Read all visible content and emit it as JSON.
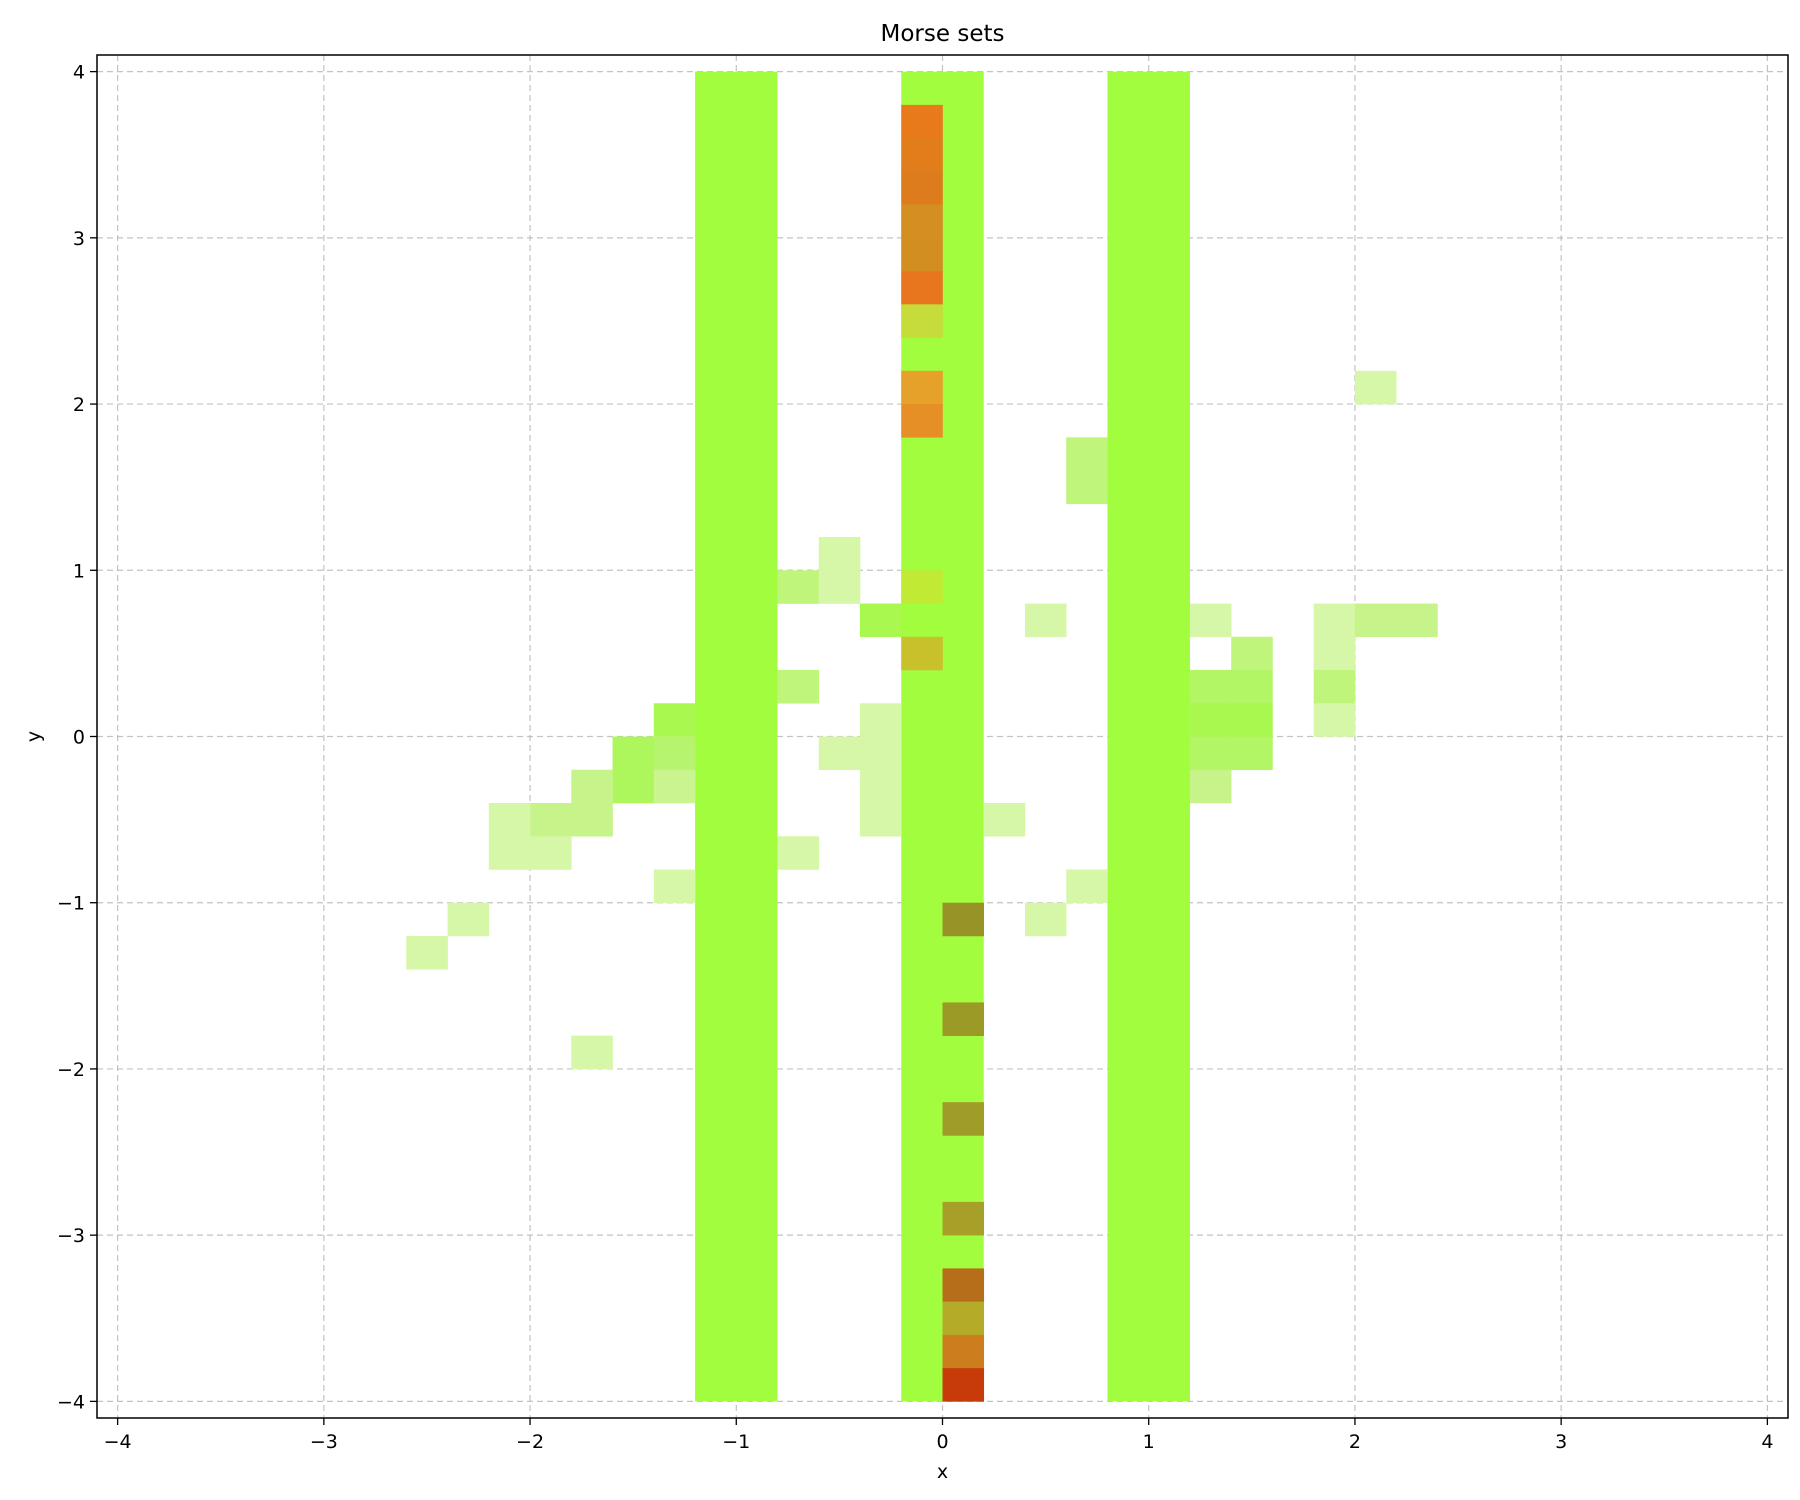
{
  "chart_data": {
    "type": "heatmap",
    "title": "Morse sets",
    "xlabel": "x",
    "ylabel": "y",
    "xlim": [
      -4.1,
      4.1
    ],
    "ylim": [
      -4.1,
      4.1
    ],
    "xticks": [
      -4,
      -3,
      -2,
      -1,
      0,
      1,
      2,
      3,
      4
    ],
    "yticks": [
      -4,
      -3,
      -2,
      -1,
      0,
      1,
      2,
      3,
      4
    ],
    "xtick_labels": [
      "−4",
      "−3",
      "−2",
      "−1",
      "0",
      "1",
      "2",
      "3",
      "4"
    ],
    "ytick_labels": [
      "−4",
      "−3",
      "−2",
      "−1",
      "0",
      "1",
      "2",
      "3",
      "4"
    ],
    "grid": true,
    "cell_size": [
      0.2,
      0.2
    ],
    "bands": [
      {
        "x0": -1.2,
        "x1": -0.8,
        "y0": -4,
        "y1": 4,
        "color": "#a2fd3f"
      },
      {
        "x0": -0.2,
        "x1": 0.2,
        "y0": -4,
        "y1": 4,
        "color": "#a2fd3f"
      },
      {
        "x0": 0.8,
        "x1": 1.2,
        "y0": -4,
        "y1": 4,
        "color": "#a2fd3f"
      }
    ],
    "cells": [
      {
        "x": -0.2,
        "y": 3.6,
        "color": "#e87a1c"
      },
      {
        "x": -0.2,
        "y": 3.4,
        "color": "#e27d1c"
      },
      {
        "x": -0.2,
        "y": 3.2,
        "color": "#dd7c1c"
      },
      {
        "x": -0.2,
        "y": 3.0,
        "color": "#d48e22"
      },
      {
        "x": -0.2,
        "y": 2.8,
        "color": "#d38e22"
      },
      {
        "x": -0.2,
        "y": 2.6,
        "color": "#e8761f"
      },
      {
        "x": -0.2,
        "y": 2.4,
        "color": "#c6dc3a"
      },
      {
        "x": -0.2,
        "y": 2.0,
        "color": "#e6a12a"
      },
      {
        "x": -0.2,
        "y": 1.8,
        "color": "#e68f26"
      },
      {
        "x": -0.2,
        "y": 0.8,
        "color": "#c1ea35"
      },
      {
        "x": -0.2,
        "y": 0.4,
        "color": "#c8c12c"
      },
      {
        "x": 0.0,
        "y": -1.2,
        "color": "#979327"
      },
      {
        "x": 0.0,
        "y": -1.8,
        "color": "#9c9a26"
      },
      {
        "x": 0.0,
        "y": -2.4,
        "color": "#9f9d27"
      },
      {
        "x": 0.0,
        "y": -3.0,
        "color": "#a69f28"
      },
      {
        "x": 0.0,
        "y": -3.4,
        "color": "#b76e1b"
      },
      {
        "x": 0.0,
        "y": -3.6,
        "color": "#b4ab28"
      },
      {
        "x": 0.0,
        "y": -3.8,
        "color": "#cc7e1e"
      },
      {
        "x": 0.0,
        "y": -4.0,
        "color": "#c63b09"
      },
      {
        "x": -0.8,
        "y": 0.8,
        "color": "#bff57b"
      },
      {
        "x": -0.6,
        "y": 1.0,
        "color": "#d6f7a7"
      },
      {
        "x": -0.6,
        "y": 0.8,
        "color": "#d6f7a7"
      },
      {
        "x": -0.4,
        "y": 0.6,
        "color": "#a8f850"
      },
      {
        "x": -0.8,
        "y": 0.2,
        "color": "#bff57b"
      },
      {
        "x": -0.4,
        "y": 0.0,
        "color": "#d6f7a7"
      },
      {
        "x": -0.6,
        "y": -0.2,
        "color": "#d6f7a7"
      },
      {
        "x": -0.4,
        "y": -0.2,
        "color": "#d6f7a7"
      },
      {
        "x": -0.4,
        "y": -0.4,
        "color": "#d6f7a7"
      },
      {
        "x": -0.4,
        "y": -0.6,
        "color": "#d6f7a7"
      },
      {
        "x": -0.8,
        "y": -0.8,
        "color": "#d6f7a7"
      },
      {
        "x": 0.2,
        "y": -0.6,
        "color": "#d6f7a7"
      },
      {
        "x": 0.4,
        "y": 0.6,
        "color": "#d6f7a7"
      },
      {
        "x": 0.6,
        "y": 1.6,
        "color": "#bff57b"
      },
      {
        "x": 0.6,
        "y": 1.4,
        "color": "#bff57b"
      },
      {
        "x": 0.6,
        "y": -1.0,
        "color": "#d6f7a7"
      },
      {
        "x": 0.4,
        "y": -1.2,
        "color": "#d6f7a7"
      },
      {
        "x": -1.4,
        "y": 0.0,
        "color": "#a8f850"
      },
      {
        "x": -1.4,
        "y": -0.2,
        "color": "#b6f36e"
      },
      {
        "x": -1.6,
        "y": -0.2,
        "color": "#adf65c"
      },
      {
        "x": -1.6,
        "y": -0.4,
        "color": "#adf65c"
      },
      {
        "x": -1.4,
        "y": -0.4,
        "color": "#c9f48f"
      },
      {
        "x": -1.8,
        "y": -0.4,
        "color": "#c6f38a"
      },
      {
        "x": -1.8,
        "y": -0.6,
        "color": "#c6f38a"
      },
      {
        "x": -2.0,
        "y": -0.6,
        "color": "#c6f38a"
      },
      {
        "x": -2.2,
        "y": -0.6,
        "color": "#d6f7a7"
      },
      {
        "x": -2.2,
        "y": -0.8,
        "color": "#d6f7a7"
      },
      {
        "x": -2.0,
        "y": -0.8,
        "color": "#d6f7a7"
      },
      {
        "x": -1.4,
        "y": -1.0,
        "color": "#d6f7a7"
      },
      {
        "x": -2.4,
        "y": -1.2,
        "color": "#d6f7a7"
      },
      {
        "x": -2.6,
        "y": -1.4,
        "color": "#d6f7a7"
      },
      {
        "x": -1.8,
        "y": -2.0,
        "color": "#d6f7a7"
      },
      {
        "x": 1.2,
        "y": 0.6,
        "color": "#d6f7a7"
      },
      {
        "x": 1.4,
        "y": 0.4,
        "color": "#bff57b"
      },
      {
        "x": 1.2,
        "y": 0.2,
        "color": "#b2f565"
      },
      {
        "x": 1.4,
        "y": 0.2,
        "color": "#b2f565"
      },
      {
        "x": 1.2,
        "y": 0.0,
        "color": "#a8f850"
      },
      {
        "x": 1.4,
        "y": 0.0,
        "color": "#a8f850"
      },
      {
        "x": 1.2,
        "y": -0.2,
        "color": "#b2f565"
      },
      {
        "x": 1.4,
        "y": -0.2,
        "color": "#b2f565"
      },
      {
        "x": 1.2,
        "y": -0.4,
        "color": "#c6f38a"
      },
      {
        "x": 1.8,
        "y": 0.6,
        "color": "#d6f7a7"
      },
      {
        "x": 2.0,
        "y": 0.6,
        "color": "#c6f38a"
      },
      {
        "x": 2.2,
        "y": 0.6,
        "color": "#c6f38a"
      },
      {
        "x": 1.8,
        "y": 0.4,
        "color": "#d6f7a7"
      },
      {
        "x": 1.8,
        "y": 0.2,
        "color": "#bff57b"
      },
      {
        "x": 1.8,
        "y": 0.0,
        "color": "#d6f7a7"
      },
      {
        "x": 2.0,
        "y": 2.0,
        "color": "#d6f7a7"
      }
    ]
  }
}
